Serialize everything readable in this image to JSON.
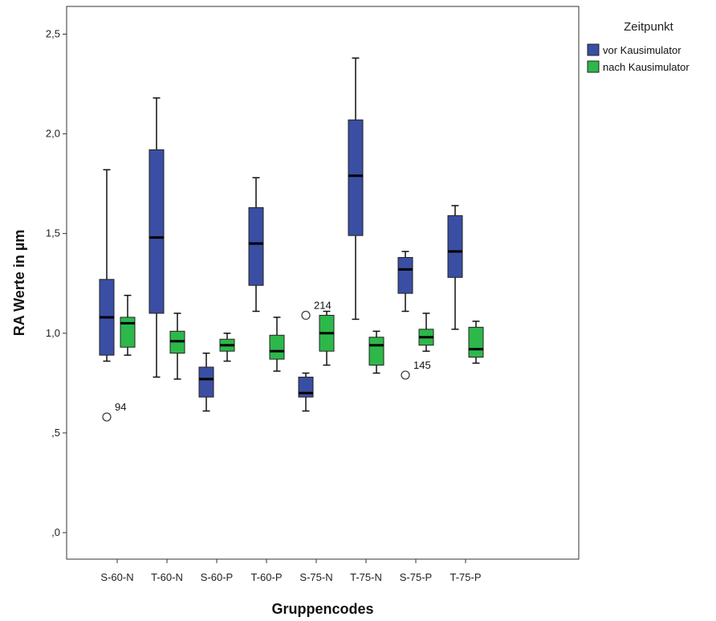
{
  "chart_data": {
    "type": "boxplot",
    "xlabel": "Gruppencodes",
    "ylabel": "RA Werte in µm",
    "ylim": [
      -0.1,
      2.65
    ],
    "yticks": [
      0.0,
      0.5,
      1.0,
      1.5,
      2.0,
      2.5
    ],
    "ytick_labels": [
      ",0",
      ",5",
      "1,0",
      "1,5",
      "2,0",
      "2,5"
    ],
    "categories": [
      "S-60-N",
      "T-60-N",
      "S-60-P",
      "T-60-P",
      "S-75-N",
      "T-75-N",
      "S-75-P",
      "T-75-P"
    ],
    "legend": {
      "title": "Zeitpunkt",
      "placement": "right"
    },
    "series": [
      {
        "name": "vor Kausimulator",
        "color": "#3a4ea3",
        "boxes": [
          {
            "min": 0.86,
            "q1": 0.89,
            "median": 1.08,
            "q3": 1.27,
            "max": 1.82
          },
          {
            "min": 0.78,
            "q1": 1.1,
            "median": 1.48,
            "q3": 1.92,
            "max": 2.18
          },
          {
            "min": 0.61,
            "q1": 0.68,
            "median": 0.77,
            "q3": 0.83,
            "max": 0.9
          },
          {
            "min": 1.11,
            "q1": 1.24,
            "median": 1.45,
            "q3": 1.63,
            "max": 1.78
          },
          {
            "min": 0.61,
            "q1": 0.68,
            "median": 0.7,
            "q3": 0.78,
            "max": 0.8
          },
          {
            "min": 1.07,
            "q1": 1.49,
            "median": 1.79,
            "q3": 2.07,
            "max": 2.38
          },
          {
            "min": 1.11,
            "q1": 1.2,
            "median": 1.32,
            "q3": 1.38,
            "max": 1.41
          },
          {
            "min": 1.02,
            "q1": 1.28,
            "median": 1.41,
            "q3": 1.59,
            "max": 1.64
          }
        ]
      },
      {
        "name": "nach Kausimulator",
        "color": "#2db84a",
        "boxes": [
          {
            "min": 0.89,
            "q1": 0.93,
            "median": 1.05,
            "q3": 1.08,
            "max": 1.19
          },
          {
            "min": 0.77,
            "q1": 0.9,
            "median": 0.96,
            "q3": 1.01,
            "max": 1.1
          },
          {
            "min": 0.86,
            "q1": 0.91,
            "median": 0.94,
            "q3": 0.97,
            "max": 1.0
          },
          {
            "min": 0.81,
            "q1": 0.87,
            "median": 0.91,
            "q3": 0.99,
            "max": 1.08
          },
          {
            "min": 0.84,
            "q1": 0.91,
            "median": 1.0,
            "q3": 1.09,
            "max": 1.11
          },
          {
            "min": 0.8,
            "q1": 0.84,
            "median": 0.94,
            "q3": 0.98,
            "max": 1.01
          },
          {
            "min": 0.91,
            "q1": 0.94,
            "median": 0.98,
            "q3": 1.02,
            "max": 1.1
          },
          {
            "min": 0.85,
            "q1": 0.88,
            "median": 0.92,
            "q3": 1.03,
            "max": 1.06
          }
        ]
      }
    ],
    "outliers": [
      {
        "category": "S-60-N",
        "series": "vor Kausimulator",
        "y": 0.58,
        "label": "94"
      },
      {
        "category": "S-75-N",
        "series": "vor Kausimulator",
        "y": 1.09,
        "label": "214"
      },
      {
        "category": "S-75-P",
        "series": "vor Kausimulator",
        "y": 0.79,
        "label": "145"
      }
    ]
  }
}
